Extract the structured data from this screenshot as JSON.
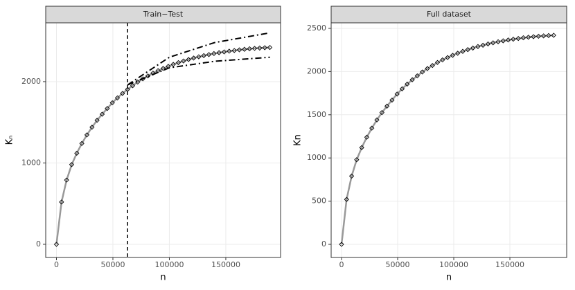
{
  "chart_data": [
    {
      "type": "line",
      "title": "Train−Test",
      "xlabel": "n",
      "ylabel": "Kₙ",
      "x": [
        0,
        4500,
        9000,
        13500,
        18000,
        22500,
        27000,
        31500,
        36000,
        40500,
        45000,
        49500,
        54000,
        58500,
        63000,
        67500,
        72000,
        76500,
        81000,
        85500,
        90000,
        94500,
        99000,
        103500,
        108000,
        112500,
        117000,
        121500,
        126000,
        130500,
        135000,
        139500,
        144000,
        148500,
        153000,
        157500,
        162000,
        166500,
        171000,
        175500,
        180000,
        184500,
        189000
      ],
      "series": [
        {
          "color": "#999999",
          "marker": "diamond",
          "values": [
            0,
            520,
            790,
            980,
            1120,
            1240,
            1345,
            1440,
            1525,
            1600,
            1670,
            1740,
            1800,
            1855,
            1905,
            1950,
            1995,
            2035,
            2070,
            2105,
            2135,
            2162,
            2188,
            2212,
            2234,
            2254,
            2272,
            2290,
            2305,
            2320,
            2333,
            2345,
            2356,
            2366,
            2375,
            2383,
            2391,
            2398,
            2404,
            2409,
            2413,
            2417,
            2420
          ]
        },
        {
          "color": "#000000",
          "dash": "dashdot",
          "x": [
            63000,
            100000,
            140000,
            189000
          ],
          "values": [
            1960,
            2300,
            2480,
            2600
          ]
        },
        {
          "color": "#000000",
          "dash": "dashdot",
          "x": [
            63000,
            100000,
            140000,
            189000
          ],
          "values": [
            1960,
            2170,
            2250,
            2300
          ]
        }
      ],
      "vline": 63000,
      "xlim": [
        -9500,
        198500
      ],
      "xticks": [
        0,
        50000,
        100000,
        150000
      ],
      "ylim": [
        -162,
        2723
      ],
      "yticks": [
        0,
        1000,
        2000
      ],
      "grid": true
    },
    {
      "type": "line",
      "title": "Full dataset",
      "xlabel": "n",
      "ylabel": "Kn",
      "x": [
        0,
        4500,
        9000,
        13500,
        18000,
        22500,
        27000,
        31500,
        36000,
        40500,
        45000,
        49500,
        54000,
        58500,
        63000,
        67500,
        72000,
        76500,
        81000,
        85500,
        90000,
        94500,
        99000,
        103500,
        108000,
        112500,
        117000,
        121500,
        126000,
        130500,
        135000,
        139500,
        144000,
        148500,
        153000,
        157500,
        162000,
        166500,
        171000,
        175500,
        180000,
        184500,
        189000
      ],
      "series": [
        {
          "color": "#999999",
          "marker": "diamond",
          "values": [
            0,
            520,
            790,
            980,
            1120,
            1240,
            1345,
            1440,
            1525,
            1600,
            1670,
            1740,
            1800,
            1855,
            1905,
            1950,
            1995,
            2035,
            2070,
            2105,
            2135,
            2162,
            2188,
            2212,
            2234,
            2254,
            2272,
            2290,
            2305,
            2320,
            2333,
            2345,
            2356,
            2366,
            2375,
            2383,
            2391,
            2398,
            2404,
            2409,
            2413,
            2417,
            2420
          ]
        }
      ],
      "xlim": [
        -9260,
        200600
      ],
      "xticks": [
        0,
        50000,
        100000,
        150000
      ],
      "ylim": [
        -152,
        2564
      ],
      "yticks": [
        0,
        500,
        1000,
        1500,
        2000,
        2500
      ],
      "grid": true
    }
  ]
}
